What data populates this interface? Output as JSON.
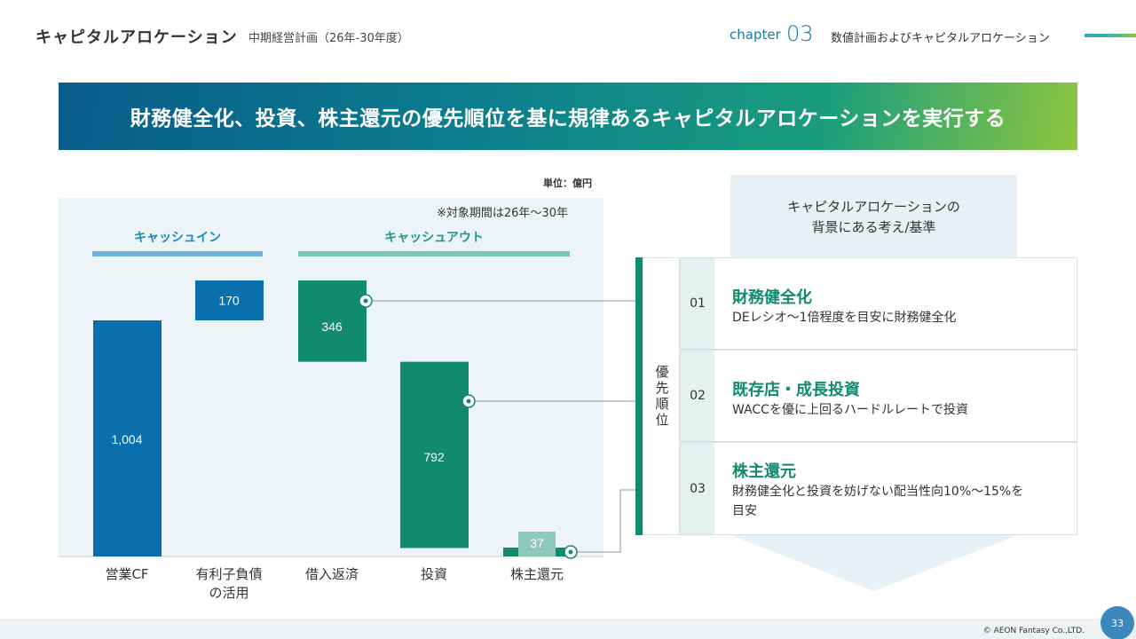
{
  "header": {
    "title": "キャピタルアロケーション",
    "subtitle": "中期経営計画（26年-30年度）",
    "chapter_label": "chapter",
    "chapter_number": "03",
    "section": "数値計画およびキャピタルアロケーション"
  },
  "banner": {
    "text": "財務健全化、投資、株主還元の優先順位を基に規律あるキャピタルアロケーションを実行する"
  },
  "chart_data": {
    "type": "bar",
    "subtype": "waterfall",
    "unit": "単位：億円",
    "note": "※対象期間は26年〜30年",
    "groups": [
      {
        "label": "キャッシュイン",
        "categories": [
          "営業CF",
          "有利子負債の活用"
        ]
      },
      {
        "label": "キャッシュアウト",
        "categories": [
          "借入返済",
          "投資",
          "株主還元"
        ]
      }
    ],
    "categories": [
      "営業CF",
      "有利子負債\nの活用",
      "借入返済",
      "投資",
      "株主還元"
    ],
    "values": [
      1004,
      170,
      346,
      792,
      37
    ],
    "value_labels": [
      "1,004",
      "170",
      "346",
      "792",
      "37"
    ],
    "colors": [
      "#0a6fad",
      "#0a6fad",
      "#118a6e",
      "#118a6e",
      "#8ec9ba"
    ]
  },
  "panel": {
    "title_line1": "キャピタルアロケーションの",
    "title_line2": "背景にある考え/基準",
    "priority_label": "優先順位",
    "rows": [
      {
        "num": "01",
        "title": "財務健全化",
        "desc": "DEレシオ〜1倍程度を目安に財務健全化"
      },
      {
        "num": "02",
        "title": "既存店・成長投資",
        "desc": "WACCを優に上回るハードルレートで投資"
      },
      {
        "num": "03",
        "title": "株主還元",
        "desc": "財務健全化と投資を妨げない配当性向10%〜15%を目安"
      }
    ]
  },
  "footer": {
    "copyright": "© AEON Fantasy Co.,LTD.",
    "page": "33"
  }
}
